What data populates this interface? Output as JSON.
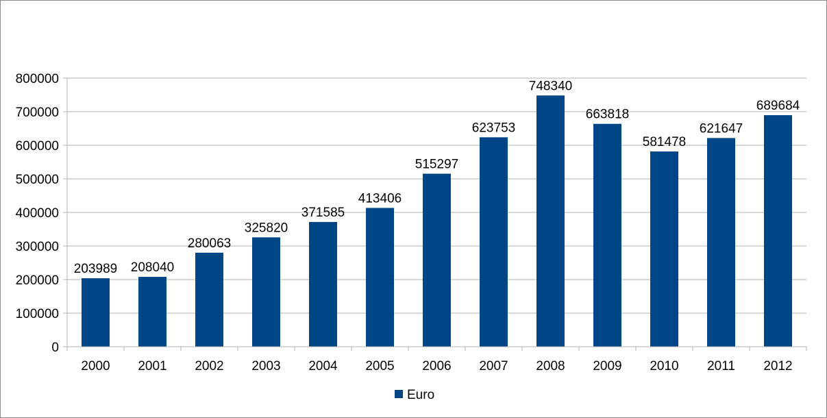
{
  "chart_data": {
    "type": "bar",
    "title": "",
    "xlabel": "",
    "ylabel": "",
    "categories": [
      "2000",
      "2001",
      "2002",
      "2003",
      "2004",
      "2005",
      "2006",
      "2007",
      "2008",
      "2009",
      "2010",
      "2011",
      "2012"
    ],
    "series": [
      {
        "name": "Euro",
        "color": "#004586",
        "values": [
          203989,
          208040,
          280063,
          325820,
          371585,
          413406,
          515297,
          623753,
          748340,
          663818,
          581478,
          621647,
          689684
        ]
      }
    ],
    "ylim": [
      0,
      800000
    ],
    "yticks": [
      0,
      100000,
      200000,
      300000,
      400000,
      500000,
      600000,
      700000,
      800000
    ],
    "data_labels": true,
    "grid": true,
    "gridline_color": "#b3b3b3",
    "legend_position": "bottom"
  }
}
